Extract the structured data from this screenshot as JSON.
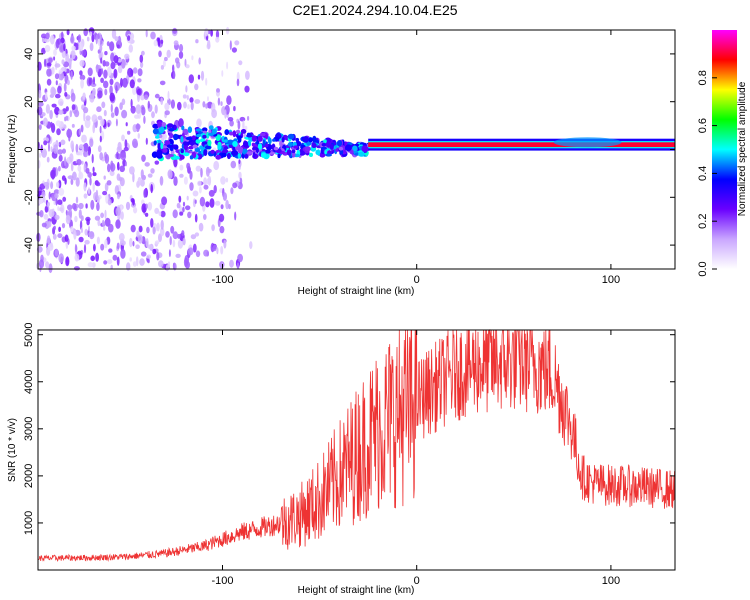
{
  "title": "C2E1.2024.294.10.04.E25",
  "chart_data": [
    {
      "type": "heatmap",
      "xlabel": "Height of straight line (km)",
      "ylabel": "Frequency (Hz)",
      "xlim": [
        -195,
        133
      ],
      "ylim": [
        -50,
        50
      ],
      "x_ticks": [
        -100,
        0,
        100
      ],
      "y_ticks": [
        -40,
        -20,
        0,
        20,
        40
      ],
      "colorbar": {
        "label": "Normalized spectral amplitude",
        "range": [
          0,
          1
        ],
        "ticks": [
          0.0,
          0.2,
          0.4,
          0.6,
          0.8
        ],
        "colors": [
          "#ffffff",
          "#c9a6ff",
          "#6a00ff",
          "#0000ff",
          "#00ffff",
          "#00ff00",
          "#ffff00",
          "#ff0000",
          "#ff00ff"
        ]
      },
      "features": {
        "strong_band": {
          "x": [
            -25,
            133
          ],
          "y": [
            1,
            3
          ],
          "amplitude": 0.9
        },
        "medium_band": {
          "x": [
            -135,
            -25
          ],
          "y_start": 4,
          "y_end": 0,
          "amplitude": 0.35
        },
        "scatter_region": {
          "x": [
            -195,
            -95
          ],
          "y": [
            -50,
            50
          ],
          "amplitude": 0.15
        }
      }
    },
    {
      "type": "line",
      "xlabel": "Height of straight line (km)",
      "ylabel": "SNR (10 * v/v)",
      "xlim": [
        -195,
        133
      ],
      "ylim": [
        0,
        5100
      ],
      "x_ticks": [
        -100,
        0,
        100
      ],
      "y_ticks": [
        1000,
        2000,
        3000,
        4000,
        5000
      ],
      "color": "#ee3333",
      "series": [
        {
          "x": [
            -195,
            -170,
            -150,
            -130,
            -110,
            -100,
            -90,
            -80,
            -70,
            -60,
            -50,
            -40,
            -30,
            -20,
            -10,
            0,
            10,
            20,
            30,
            40,
            50,
            60,
            70,
            75,
            80,
            85,
            90,
            100,
            110,
            120,
            133
          ],
          "y": [
            250,
            260,
            280,
            350,
            500,
            650,
            800,
            900,
            1000,
            1150,
            1500,
            2000,
            2500,
            3000,
            3300,
            3600,
            3900,
            4200,
            4350,
            4400,
            4450,
            4400,
            4200,
            3600,
            3000,
            2000,
            1850,
            1800,
            1780,
            1750,
            1700
          ]
        }
      ]
    }
  ]
}
